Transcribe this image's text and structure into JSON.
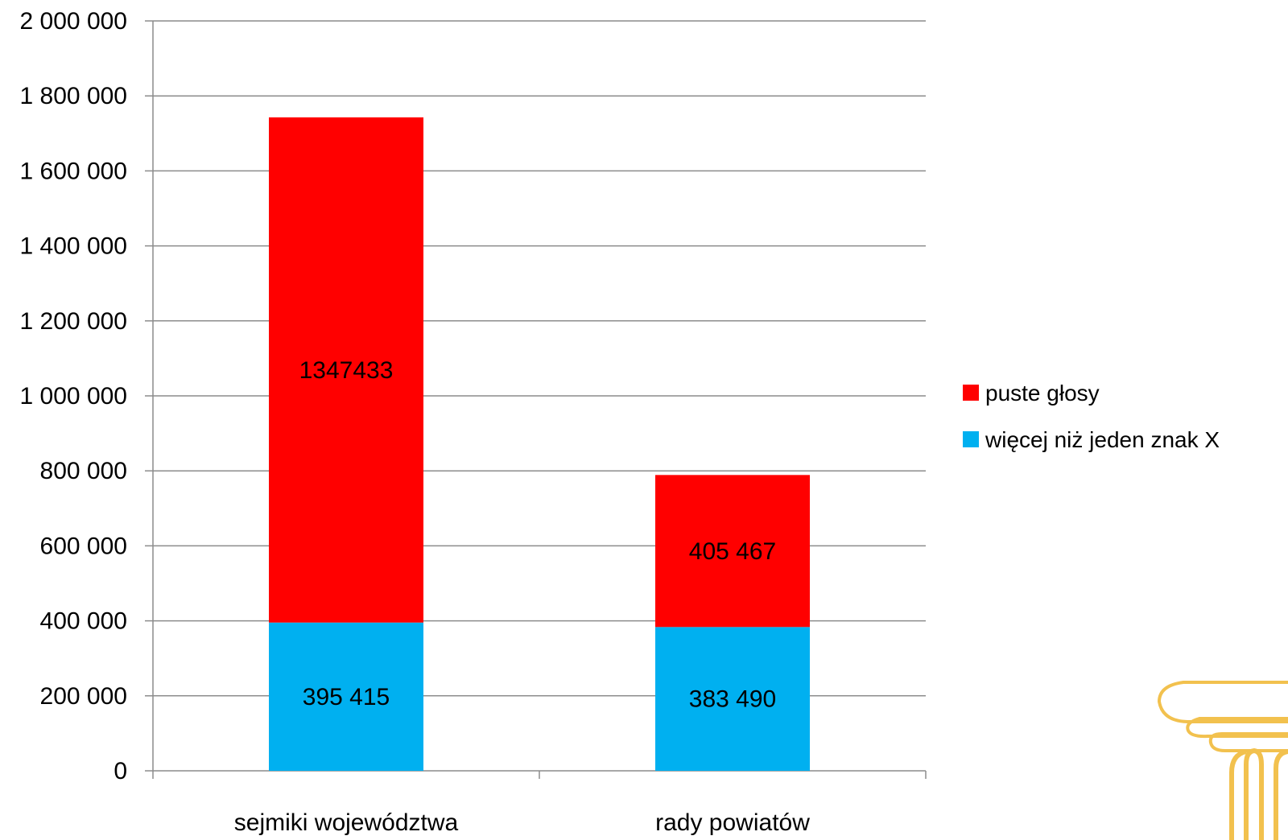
{
  "chart_data": {
    "type": "bar",
    "stacked": true,
    "categories": [
      "sejmiki województwa",
      "rady powiatów"
    ],
    "series": [
      {
        "name": "więcej niż jeden znak X",
        "color": "#00b0f0",
        "values": [
          395415,
          383490
        ],
        "labels": [
          "395 415",
          "383 490"
        ]
      },
      {
        "name": "puste głosy",
        "color": "#ff0000",
        "values": [
          1347433,
          405467
        ],
        "labels": [
          "1347433",
          "405 467"
        ]
      }
    ],
    "y_ticks": [
      {
        "value": 0,
        "label": "0"
      },
      {
        "value": 200000,
        "label": "200 000"
      },
      {
        "value": 400000,
        "label": "400 000"
      },
      {
        "value": 600000,
        "label": "600 000"
      },
      {
        "value": 800000,
        "label": "800 000"
      },
      {
        "value": 1000000,
        "label": "1 000 000"
      },
      {
        "value": 1200000,
        "label": "1 200 000"
      },
      {
        "value": 1400000,
        "label": "1 400 000"
      },
      {
        "value": 1600000,
        "label": "1 600 000"
      },
      {
        "value": 1800000,
        "label": "1 800 000"
      },
      {
        "value": 2000000,
        "label": "2 000 000"
      }
    ],
    "ylim": [
      0,
      2000000
    ],
    "grid": true,
    "legend": "right",
    "legend_order": [
      "puste głosy",
      "więcej niż jeden znak X"
    ],
    "title": "",
    "xlabel": "",
    "ylabel": ""
  },
  "decoration": {
    "icon": "column-capital-icon",
    "color": "#f2c14e"
  }
}
